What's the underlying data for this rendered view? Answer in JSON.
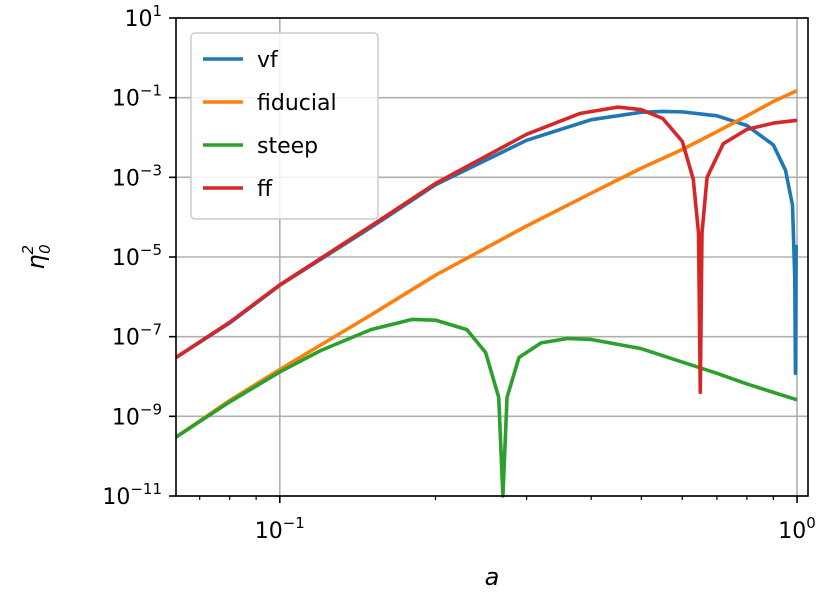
{
  "chart_data": {
    "type": "line",
    "xlabel": "a",
    "ylabel": "η",
    "ylabel_sup": "2",
    "ylabel_sub": "0",
    "xscale": "log",
    "yscale": "log",
    "xlim": [
      0.063,
      1.05
    ],
    "ylim": [
      1e-11,
      10
    ],
    "grid": true,
    "legend_position": "upper-left",
    "x_ticks": [
      {
        "value": 0.1,
        "base": "10",
        "exp": "−1"
      },
      {
        "value": 1,
        "base": "10",
        "exp": "0"
      }
    ],
    "y_ticks": [
      {
        "value": 10,
        "base": "10",
        "exp": "1"
      },
      {
        "value": 0.1,
        "base": "10",
        "exp": "−1"
      },
      {
        "value": 0.001,
        "base": "10",
        "exp": "−3"
      },
      {
        "value": 1e-05,
        "base": "10",
        "exp": "−5"
      },
      {
        "value": 1e-07,
        "base": "10",
        "exp": "−7"
      },
      {
        "value": 1e-09,
        "base": "10",
        "exp": "−9"
      },
      {
        "value": 1e-11,
        "base": "10",
        "exp": "−11"
      }
    ],
    "series": [
      {
        "name": "vf",
        "color": "#1f77b4",
        "points": [
          [
            0.063,
            3e-08
          ],
          [
            0.08,
            2.2e-07
          ],
          [
            0.1,
            1.95e-06
          ],
          [
            0.15,
            5.5e-05
          ],
          [
            0.2,
            0.00065
          ],
          [
            0.3,
            0.0085
          ],
          [
            0.4,
            0.028
          ],
          [
            0.5,
            0.043
          ],
          [
            0.55,
            0.045
          ],
          [
            0.6,
            0.044
          ],
          [
            0.7,
            0.035
          ],
          [
            0.8,
            0.02
          ],
          [
            0.9,
            0.0065
          ],
          [
            0.95,
            0.0015
          ],
          [
            0.98,
            0.0002
          ],
          [
            0.99,
            3e-06
          ],
          [
            0.993,
            1.2e-08
          ],
          [
            0.996,
            2e-05
          ]
        ]
      },
      {
        "name": "fiducial",
        "color": "#ff7f0e",
        "points": [
          [
            0.063,
            3e-10
          ],
          [
            0.08,
            2.5e-09
          ],
          [
            0.1,
            1.5e-08
          ],
          [
            0.15,
            3.5e-07
          ],
          [
            0.2,
            3.5e-06
          ],
          [
            0.3,
            6e-05
          ],
          [
            0.4,
            0.0004
          ],
          [
            0.5,
            0.0017
          ],
          [
            0.6,
            0.005
          ],
          [
            0.7,
            0.014
          ],
          [
            0.8,
            0.035
          ],
          [
            0.9,
            0.08
          ],
          [
            1.0,
            0.15
          ]
        ]
      },
      {
        "name": "steep",
        "color": "#2ca02c",
        "points": [
          [
            0.063,
            3e-10
          ],
          [
            0.08,
            2.3e-09
          ],
          [
            0.1,
            1.3e-08
          ],
          [
            0.12,
            4.5e-08
          ],
          [
            0.15,
            1.5e-07
          ],
          [
            0.18,
            2.7e-07
          ],
          [
            0.2,
            2.6e-07
          ],
          [
            0.23,
            1.5e-07
          ],
          [
            0.25,
            4e-08
          ],
          [
            0.265,
            3e-09
          ],
          [
            0.27,
            1e-11
          ],
          [
            0.275,
            3e-09
          ],
          [
            0.29,
            3e-08
          ],
          [
            0.32,
            7e-08
          ],
          [
            0.36,
            9e-08
          ],
          [
            0.4,
            8.5e-08
          ],
          [
            0.5,
            5e-08
          ],
          [
            0.6,
            2.3e-08
          ],
          [
            0.7,
            1.2e-08
          ],
          [
            0.8,
            6.5e-09
          ],
          [
            0.9,
            4e-09
          ],
          [
            1.0,
            2.6e-09
          ]
        ]
      },
      {
        "name": "ff",
        "color": "#d62728",
        "points": [
          [
            0.063,
            3e-08
          ],
          [
            0.08,
            2.3e-07
          ],
          [
            0.1,
            2e-06
          ],
          [
            0.15,
            6e-05
          ],
          [
            0.2,
            0.0007
          ],
          [
            0.3,
            0.012
          ],
          [
            0.38,
            0.04
          ],
          [
            0.45,
            0.058
          ],
          [
            0.5,
            0.05
          ],
          [
            0.55,
            0.03
          ],
          [
            0.6,
            0.008
          ],
          [
            0.63,
            0.0009
          ],
          [
            0.645,
            4e-05
          ],
          [
            0.65,
            4e-09
          ],
          [
            0.655,
            4e-05
          ],
          [
            0.67,
            0.001
          ],
          [
            0.72,
            0.007
          ],
          [
            0.8,
            0.016
          ],
          [
            0.9,
            0.023
          ],
          [
            1.0,
            0.027
          ]
        ]
      }
    ]
  }
}
